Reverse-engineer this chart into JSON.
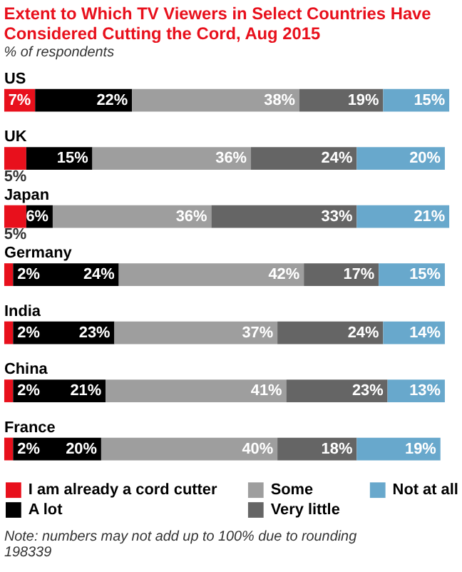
{
  "chart_data": {
    "type": "bar",
    "orientation": "horizontal",
    "stacked": true,
    "title": "Extent to Which TV Viewers in Select Countries Have Considered Cutting the Cord, Aug 2015",
    "subtitle": "% of respondents",
    "categories": [
      "US",
      "UK",
      "Japan",
      "Germany",
      "India",
      "China",
      "France"
    ],
    "series": [
      {
        "name": "I am already a cord cutter",
        "color": "#e8101c",
        "values": [
          7,
          5,
          5,
          2,
          2,
          2,
          2
        ],
        "value_labels": [
          "7%",
          "5%",
          "5%",
          "2%",
          "2%",
          "2%",
          "2%"
        ]
      },
      {
        "name": "A lot",
        "color": "#000000",
        "values": [
          22,
          15,
          6,
          24,
          23,
          21,
          20
        ],
        "value_labels": [
          "22%",
          "15%",
          "6%",
          "24%",
          "23%",
          "21%",
          "20%"
        ]
      },
      {
        "name": "Some",
        "color": "#9e9e9e",
        "values": [
          38,
          36,
          36,
          42,
          37,
          41,
          40
        ],
        "value_labels": [
          "38%",
          "36%",
          "36%",
          "42%",
          "37%",
          "41%",
          "40%"
        ]
      },
      {
        "name": "Very little",
        "color": "#656565",
        "values": [
          19,
          24,
          33,
          17,
          24,
          23,
          18
        ],
        "value_labels": [
          "19%",
          "24%",
          "33%",
          "17%",
          "24%",
          "23%",
          "18%"
        ]
      },
      {
        "name": "Not at all",
        "color": "#68a8cc",
        "values": [
          15,
          20,
          21,
          15,
          14,
          13,
          19
        ],
        "value_labels": [
          "15%",
          "20%",
          "21%",
          "15%",
          "14%",
          "13%",
          "19%"
        ]
      }
    ],
    "legend": "bottom",
    "annotations": [
      "Note: numbers may not add up to 100% due to rounding",
      "198339"
    ]
  }
}
